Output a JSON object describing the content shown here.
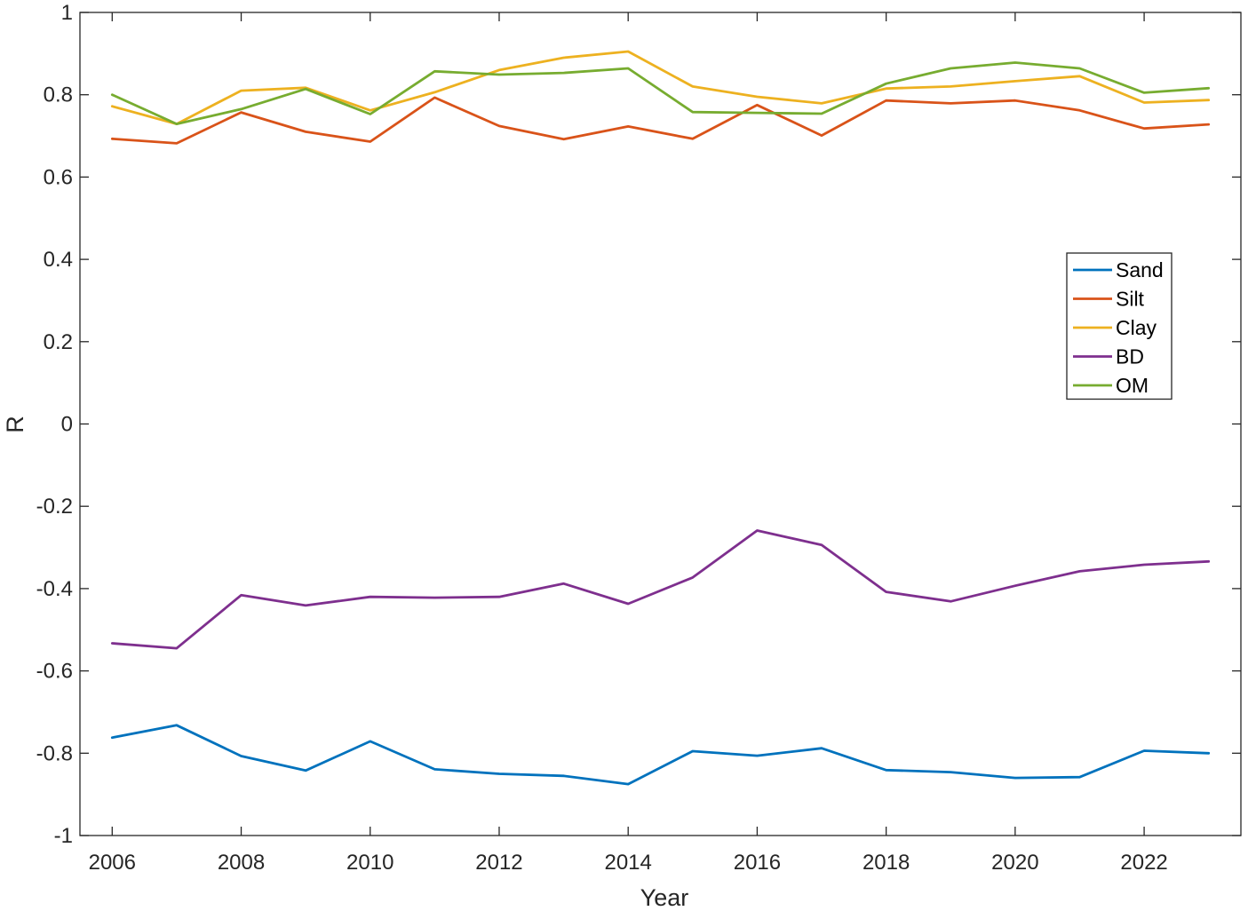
{
  "chart_data": {
    "type": "line",
    "title": "",
    "xlabel": "Year",
    "ylabel": "R",
    "xlim": [
      2005.5,
      2023.5
    ],
    "ylim": [
      -1,
      1
    ],
    "x_ticks": [
      "2006",
      "2008",
      "2010",
      "2012",
      "2014",
      "2016",
      "2018",
      "2020",
      "2022"
    ],
    "y_ticks": [
      "1",
      "0.8",
      "0.6",
      "0.4",
      "0.2",
      "0",
      "-0.2",
      "-0.4",
      "-0.6",
      "-0.8",
      "-1"
    ],
    "grid": false,
    "legend_position": "right",
    "x": [
      2006,
      2007,
      2008,
      2009,
      2010,
      2011,
      2012,
      2013,
      2014,
      2015,
      2016,
      2017,
      2018,
      2019,
      2020,
      2021,
      2022,
      2023
    ],
    "series": [
      {
        "name": "Sand",
        "color": "#0072BD",
        "values": [
          -0.762,
          -0.732,
          -0.807,
          -0.842,
          -0.771,
          -0.839,
          -0.85,
          -0.855,
          -0.875,
          -0.795,
          -0.806,
          -0.788,
          -0.841,
          -0.846,
          -0.86,
          -0.858,
          -0.794,
          -0.8
        ]
      },
      {
        "name": "Silt",
        "color": "#D95319",
        "values": [
          0.693,
          0.682,
          0.757,
          0.71,
          0.686,
          0.793,
          0.724,
          0.692,
          0.723,
          0.693,
          0.775,
          0.701,
          0.786,
          0.779,
          0.786,
          0.762,
          0.718,
          0.728
        ]
      },
      {
        "name": "Clay",
        "color": "#EDB120",
        "values": [
          0.772,
          0.729,
          0.81,
          0.817,
          0.762,
          0.806,
          0.86,
          0.89,
          0.905,
          0.82,
          0.795,
          0.779,
          0.815,
          0.82,
          0.833,
          0.845,
          0.781,
          0.787
        ]
      },
      {
        "name": "BD",
        "color": "#7E2F8E",
        "values": [
          -0.533,
          -0.545,
          -0.416,
          -0.441,
          -0.42,
          -0.422,
          -0.42,
          -0.388,
          -0.437,
          -0.373,
          -0.259,
          -0.294,
          -0.408,
          -0.431,
          -0.393,
          -0.358,
          -0.342,
          -0.334
        ]
      },
      {
        "name": "OM",
        "color": "#77AC30",
        "values": [
          0.8,
          0.729,
          0.765,
          0.814,
          0.753,
          0.857,
          0.849,
          0.853,
          0.864,
          0.758,
          0.756,
          0.754,
          0.827,
          0.864,
          0.878,
          0.864,
          0.805,
          0.816
        ]
      }
    ]
  }
}
